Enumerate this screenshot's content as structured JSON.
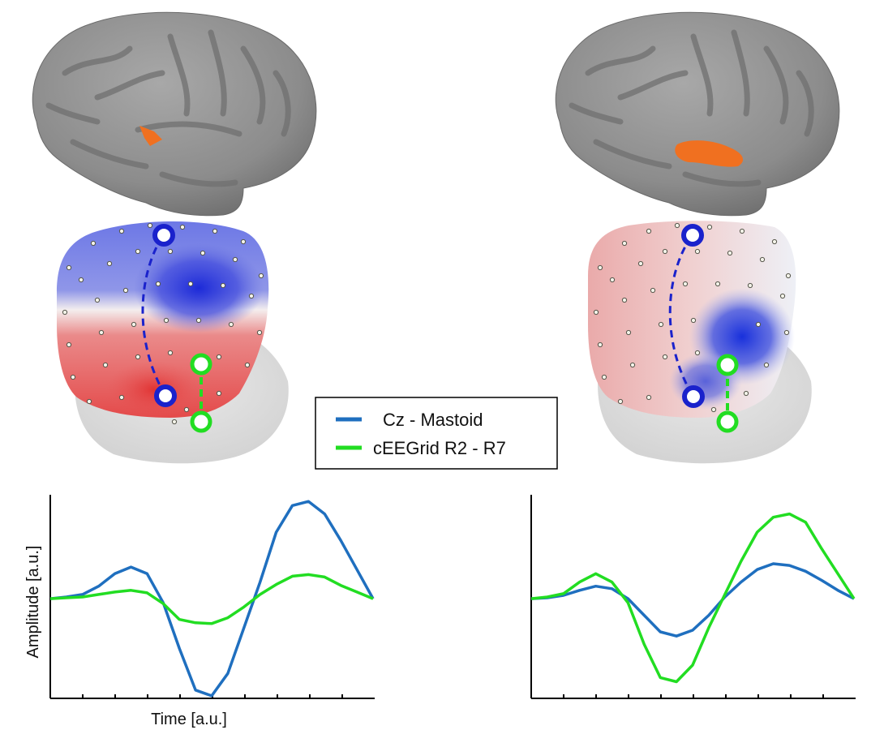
{
  "legend": {
    "items": [
      {
        "label": "Cz - Mastoid",
        "color": "#1f6fbf"
      },
      {
        "label": "cEEGrid R2 - R7",
        "color": "#22dd22"
      }
    ]
  },
  "colors": {
    "brain": "#8e8e8e",
    "activation": "#f07020",
    "negative": "#2233dd",
    "positive": "#e03a3a",
    "electrode_cz": "#1a22cc",
    "electrode_grid": "#22dd22"
  },
  "chart_data": [
    {
      "type": "line",
      "title": "",
      "xlabel": "Time [a.u.]",
      "ylabel": "Amplitude [a.u.]",
      "x": [
        0,
        1,
        2,
        3,
        4,
        5,
        6,
        7,
        8,
        9,
        10,
        11,
        12,
        13,
        14,
        15,
        16,
        17,
        18,
        19,
        20
      ],
      "ylim": [
        -1.2,
        1.25
      ],
      "grid": false,
      "series": [
        {
          "name": "Cz - Mastoid",
          "color": "#1f6fbf",
          "values": [
            0.0,
            0.02,
            0.05,
            0.15,
            0.3,
            0.38,
            0.3,
            -0.05,
            -0.6,
            -1.1,
            -1.17,
            -0.9,
            -0.35,
            0.2,
            0.8,
            1.12,
            1.17,
            1.02,
            0.7,
            0.35,
            0.0
          ]
        },
        {
          "name": "cEEGrid R2 - R7",
          "color": "#22dd22",
          "values": [
            0.0,
            0.01,
            0.02,
            0.05,
            0.08,
            0.1,
            0.07,
            -0.06,
            -0.25,
            -0.29,
            -0.3,
            -0.23,
            -0.1,
            0.05,
            0.17,
            0.27,
            0.29,
            0.26,
            0.16,
            0.08,
            0.0
          ]
        }
      ]
    },
    {
      "type": "line",
      "title": "",
      "xlabel": "",
      "ylabel": "",
      "x": [
        0,
        1,
        2,
        3,
        4,
        5,
        6,
        7,
        8,
        9,
        10,
        11,
        12,
        13,
        14,
        15,
        16,
        17,
        18,
        19,
        20
      ],
      "ylim": [
        -1.2,
        1.25
      ],
      "grid": false,
      "series": [
        {
          "name": "Cz - Mastoid",
          "color": "#1f6fbf",
          "values": [
            0.0,
            0.01,
            0.04,
            0.1,
            0.15,
            0.12,
            0.0,
            -0.2,
            -0.4,
            -0.45,
            -0.38,
            -0.2,
            0.02,
            0.2,
            0.35,
            0.42,
            0.4,
            0.33,
            0.22,
            0.1,
            0.0
          ]
        },
        {
          "name": "cEEGrid R2 - R7",
          "color": "#22dd22",
          "values": [
            0.0,
            0.02,
            0.06,
            0.2,
            0.3,
            0.2,
            -0.05,
            -0.55,
            -0.95,
            -1.0,
            -0.8,
            -0.35,
            0.05,
            0.45,
            0.8,
            0.98,
            1.02,
            0.92,
            0.6,
            0.3,
            0.0
          ]
        }
      ]
    }
  ]
}
